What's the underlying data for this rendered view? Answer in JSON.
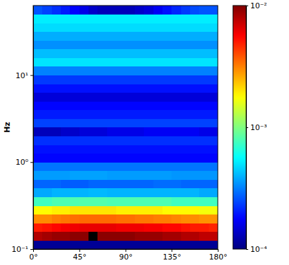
{
  "chart_data": {
    "type": "heatmap",
    "ylabel": "Hz",
    "log": "y",
    "xlim": [
      0,
      180
    ],
    "xticks": [
      {
        "value": 0,
        "label": "0°"
      },
      {
        "value": 45,
        "label": "45°"
      },
      {
        "value": 90,
        "label": "90°"
      },
      {
        "value": 135,
        "label": "135°"
      },
      {
        "value": 180,
        "label": "180°"
      }
    ],
    "ylim": [
      0.1,
      63.1
    ],
    "yticks": [
      {
        "value": 0.1,
        "label": "10⁻¹"
      },
      {
        "value": 1,
        "label": "10⁰"
      },
      {
        "value": 10,
        "label": "10¹"
      }
    ],
    "x_edges": [
      0,
      9,
      18,
      27,
      36,
      45,
      54,
      63,
      72,
      81,
      90,
      99,
      108,
      117,
      126,
      135,
      144,
      153,
      162,
      171,
      180
    ],
    "y_edges": [
      0.1,
      0.1259,
      0.1585,
      0.1995,
      0.2512,
      0.3162,
      0.3981,
      0.5012,
      0.631,
      0.7943,
      1,
      1.259,
      1.585,
      1.995,
      2.512,
      3.162,
      3.981,
      5.012,
      6.31,
      7.943,
      10,
      12.59,
      15.85,
      19.95,
      25.12,
      31.62,
      39.81,
      50.12,
      63.1
    ],
    "cells": [
      [
        0.00011,
        0.00011,
        0.00011,
        0.00011,
        0.00011,
        0.00011,
        0.00011,
        0.00011,
        0.00011,
        0.00011,
        0.00011,
        0.00011,
        0.00011,
        0.00011,
        0.00011,
        0.00011,
        0.00011,
        0.00011,
        0.00011,
        0.00011
      ],
      [
        0.008,
        0.0085,
        0.009,
        0.009,
        0.0095,
        0.0095,
        0.013,
        0.0095,
        0.0095,
        0.0095,
        0.0095,
        0.009,
        0.009,
        0.009,
        0.0085,
        0.0085,
        0.008,
        0.008,
        0.0075,
        0.0075
      ],
      [
        0.005,
        0.0052,
        0.0055,
        0.0058,
        0.006,
        0.0062,
        0.0062,
        0.0062,
        0.0062,
        0.006,
        0.006,
        0.006,
        0.0058,
        0.0058,
        0.0055,
        0.0055,
        0.0052,
        0.005,
        0.005,
        0.0048
      ],
      [
        0.003,
        0.003,
        0.0032,
        0.0033,
        0.0034,
        0.0035,
        0.0035,
        0.0035,
        0.0035,
        0.0034,
        0.0034,
        0.0033,
        0.0033,
        0.0032,
        0.0032,
        0.0031,
        0.003,
        0.003,
        0.0029,
        0.0029
      ],
      [
        0.0018,
        0.0018,
        0.0019,
        0.0019,
        0.002,
        0.002,
        0.002,
        0.002,
        0.002,
        0.0019,
        0.0019,
        0.0019,
        0.0019,
        0.0019,
        0.0018,
        0.0018,
        0.0018,
        0.0018,
        0.0017,
        0.0017
      ],
      [
        0.00075,
        0.00075,
        0.0008,
        0.0008,
        0.0008,
        0.00082,
        0.00082,
        0.00082,
        0.0008,
        0.0008,
        0.0008,
        0.0008,
        0.0008,
        0.0008,
        0.0008,
        0.00075,
        0.00075,
        0.00075,
        0.00075,
        0.00075
      ],
      [
        0.00038,
        0.00038,
        0.0004,
        0.0004,
        0.0004,
        0.0004,
        0.00041,
        0.00041,
        0.0004,
        0.0004,
        0.0004,
        0.0004,
        0.0004,
        0.0004,
        0.0004,
        0.0004,
        0.0004,
        0.0004,
        0.00038,
        0.00038
      ],
      [
        0.00028,
        0.00028,
        0.00028,
        0.00027,
        0.00027,
        0.00027,
        0.00028,
        0.00028,
        0.00028,
        0.00028,
        0.00028,
        0.00028,
        0.00028,
        0.00029,
        0.00029,
        0.00029,
        0.00028,
        0.00028,
        0.00028,
        0.00028
      ],
      [
        0.00036,
        0.00036,
        0.00036,
        0.00036,
        0.00037,
        0.00037,
        0.00037,
        0.00037,
        0.00036,
        0.00036,
        0.00036,
        0.00036,
        0.00036,
        0.00036,
        0.00036,
        0.00035,
        0.00035,
        0.00035,
        0.00035,
        0.00035
      ],
      [
        0.0003,
        0.0003,
        0.0003,
        0.0003,
        0.0003,
        0.0003,
        0.0003,
        0.0003,
        0.0003,
        0.0003,
        0.0003,
        0.0003,
        0.0003,
        0.0003,
        0.0003,
        0.0003,
        0.0003,
        0.0003,
        0.0003,
        0.0003
      ],
      [
        0.00018,
        0.00018,
        0.00018,
        0.00018,
        0.00018,
        0.00018,
        0.00018,
        0.00018,
        0.00018,
        0.00018,
        0.00018,
        0.00018,
        0.00018,
        0.00018,
        0.00018,
        0.00018,
        0.00018,
        0.00018,
        0.00018,
        0.00018
      ],
      [
        0.00019,
        0.00019,
        0.00019,
        0.00019,
        0.00019,
        0.00019,
        0.00019,
        0.00019,
        0.00019,
        0.00019,
        0.00019,
        0.00019,
        0.00019,
        0.00019,
        0.00019,
        0.00019,
        0.00019,
        0.00019,
        0.00019,
        0.00019
      ],
      [
        0.00022,
        0.00022,
        0.00022,
        0.00022,
        0.00022,
        0.00022,
        0.00022,
        0.00022,
        0.00022,
        0.00022,
        0.00022,
        0.00022,
        0.00022,
        0.00022,
        0.00022,
        0.00022,
        0.00022,
        0.00022,
        0.00022,
        0.00022
      ],
      [
        0.00013,
        0.00013,
        0.00013,
        0.00014,
        0.00014,
        0.00015,
        0.00015,
        0.00015,
        0.00016,
        0.00016,
        0.00016,
        0.00016,
        0.00017,
        0.00017,
        0.00017,
        0.00017,
        0.00017,
        0.00017,
        0.00016,
        0.00016
      ],
      [
        0.00024,
        0.00024,
        0.00024,
        0.00024,
        0.00024,
        0.00024,
        0.00024,
        0.00024,
        0.00024,
        0.00024,
        0.00024,
        0.00024,
        0.00024,
        0.00024,
        0.00024,
        0.00024,
        0.00024,
        0.00024,
        0.00024,
        0.00024
      ],
      [
        0.0002,
        0.0002,
        0.0002,
        0.0002,
        0.0002,
        0.0002,
        0.0002,
        0.0002,
        0.0002,
        0.0002,
        0.0002,
        0.0002,
        0.0002,
        0.0002,
        0.0002,
        0.0002,
        0.0002,
        0.0002,
        0.0002,
        0.0002
      ],
      [
        0.00018,
        0.00018,
        0.00018,
        0.00018,
        0.00018,
        0.00018,
        0.00018,
        0.00018,
        0.00018,
        0.00018,
        0.00018,
        0.00018,
        0.00018,
        0.00018,
        0.00018,
        0.00018,
        0.00018,
        0.00018,
        0.00018,
        0.00018
      ],
      [
        0.00015,
        0.00015,
        0.00015,
        0.00015,
        0.00015,
        0.00015,
        0.00015,
        0.00015,
        0.00015,
        0.00015,
        0.00015,
        0.00015,
        0.00015,
        0.00015,
        0.00015,
        0.00015,
        0.00015,
        0.00015,
        0.00015,
        0.00015
      ],
      [
        0.00019,
        0.00019,
        0.00019,
        0.00019,
        0.00019,
        0.00019,
        0.00019,
        0.00019,
        0.00019,
        0.00019,
        0.00019,
        0.00019,
        0.00019,
        0.00019,
        0.00019,
        0.00019,
        0.00019,
        0.00019,
        0.00019,
        0.00019
      ],
      [
        0.00023,
        0.00023,
        0.00023,
        0.00023,
        0.00023,
        0.00023,
        0.00023,
        0.00023,
        0.00023,
        0.00023,
        0.00023,
        0.00023,
        0.00023,
        0.00023,
        0.00023,
        0.00023,
        0.00023,
        0.00023,
        0.00023,
        0.00023
      ],
      [
        0.00032,
        0.00032,
        0.00032,
        0.00032,
        0.00032,
        0.00032,
        0.00032,
        0.00032,
        0.00032,
        0.00032,
        0.00032,
        0.00032,
        0.00032,
        0.00032,
        0.00032,
        0.00032,
        0.00032,
        0.00032,
        0.00032,
        0.00032
      ],
      [
        0.0005,
        0.0005,
        0.0005,
        0.0005,
        0.0005,
        0.0005,
        0.0005,
        0.0005,
        0.0005,
        0.0005,
        0.0005,
        0.0005,
        0.0005,
        0.0005,
        0.0005,
        0.0005,
        0.0005,
        0.0005,
        0.0005,
        0.0005
      ],
      [
        0.00042,
        0.00042,
        0.00042,
        0.00042,
        0.00042,
        0.00042,
        0.00042,
        0.00042,
        0.00042,
        0.00042,
        0.00042,
        0.00042,
        0.00042,
        0.00042,
        0.00042,
        0.00042,
        0.00042,
        0.00042,
        0.00042,
        0.00042
      ],
      [
        0.00034,
        0.00034,
        0.00034,
        0.00034,
        0.00034,
        0.00034,
        0.00034,
        0.00034,
        0.00034,
        0.00034,
        0.00034,
        0.00034,
        0.00034,
        0.00034,
        0.00034,
        0.00034,
        0.00034,
        0.00034,
        0.00034,
        0.00034
      ],
      [
        0.00039,
        0.00039,
        0.00039,
        0.00039,
        0.00039,
        0.00039,
        0.00039,
        0.00039,
        0.00039,
        0.00039,
        0.00039,
        0.00039,
        0.00039,
        0.00039,
        0.00039,
        0.00039,
        0.00039,
        0.00039,
        0.00039,
        0.00039
      ],
      [
        0.00048,
        0.00048,
        0.00048,
        0.00048,
        0.00048,
        0.00048,
        0.00048,
        0.00048,
        0.00048,
        0.00048,
        0.00048,
        0.00048,
        0.00048,
        0.00048,
        0.00048,
        0.00048,
        0.00048,
        0.00048,
        0.00048,
        0.00048
      ],
      [
        0.00052,
        0.00052,
        0.00052,
        0.00052,
        0.00052,
        0.00052,
        0.00052,
        0.00052,
        0.00052,
        0.00052,
        0.00052,
        0.00052,
        0.00052,
        0.00052,
        0.00052,
        0.00052,
        0.00052,
        0.00052,
        0.00052,
        0.00052
      ],
      [
        0.00026,
        0.00024,
        0.00022,
        0.0002,
        0.00018,
        0.00016,
        0.00014,
        0.00013,
        0.00013,
        0.00013,
        0.00013,
        0.00014,
        0.00015,
        0.00017,
        0.00019,
        0.00021,
        0.00023,
        0.00025,
        0.00026,
        0.00026
      ]
    ],
    "colorbar": {
      "range": [
        0.0001,
        0.01
      ],
      "log": true,
      "ticks": [
        {
          "value": 0.0001,
          "label": "10⁻⁴"
        },
        {
          "value": 0.001,
          "label": "10⁻³"
        },
        {
          "value": 0.01,
          "label": "10⁻²"
        }
      ]
    }
  }
}
